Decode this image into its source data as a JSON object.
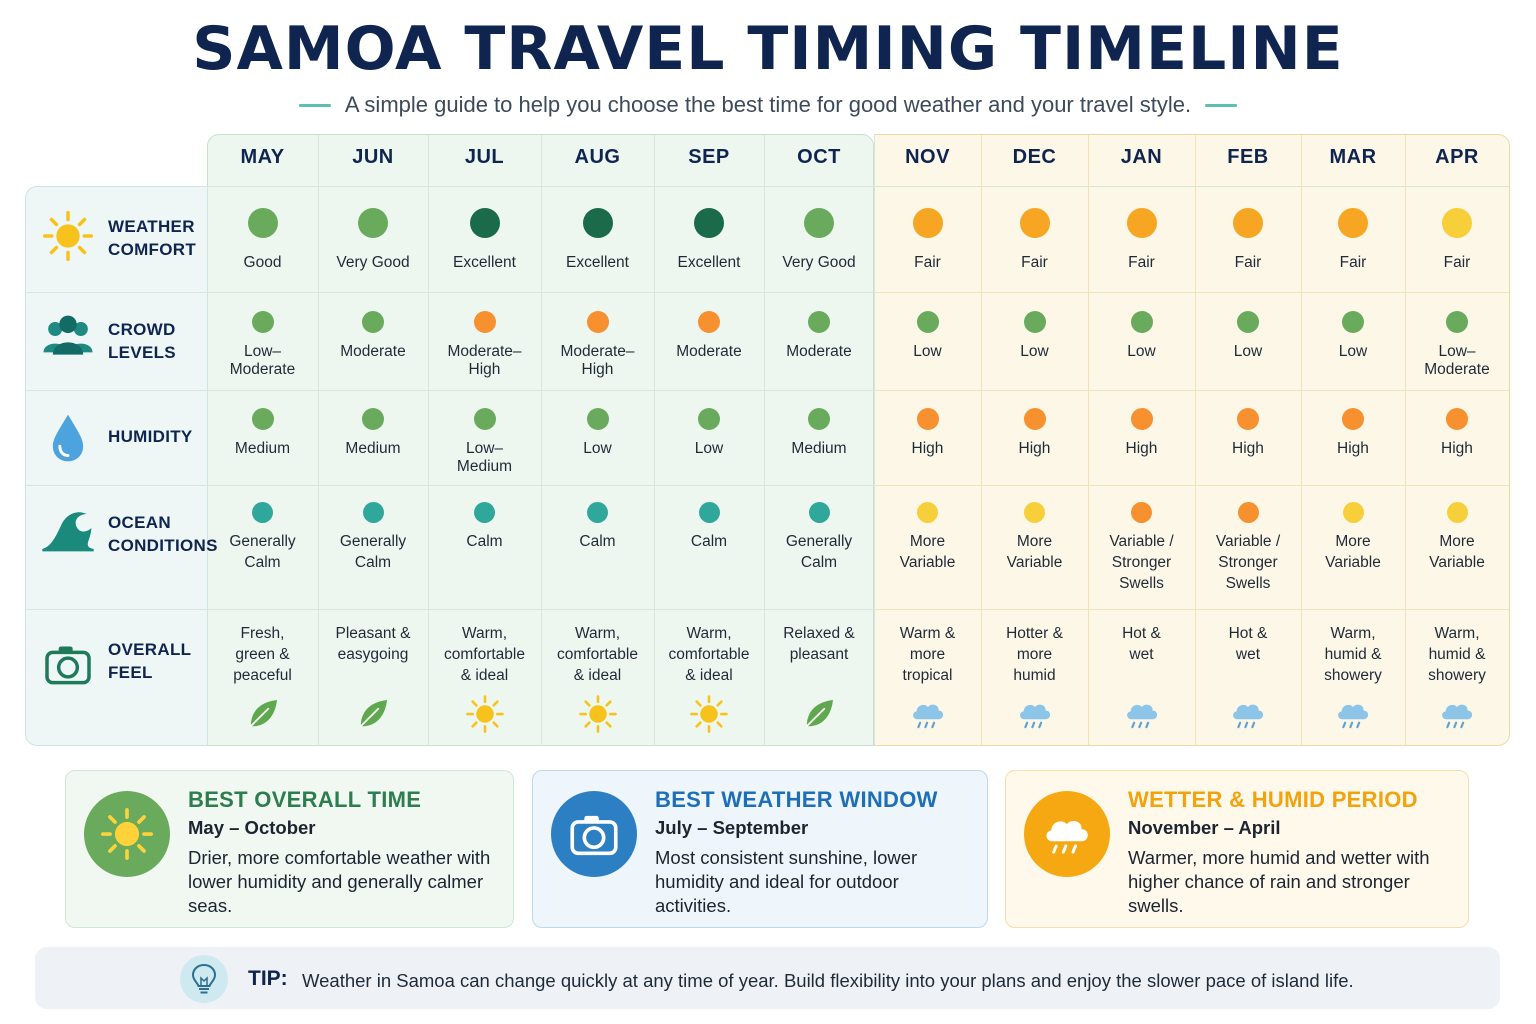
{
  "title": "SAMOA TRAVEL TIMING TIMELINE",
  "subtitle": "A simple guide to help you choose the best time for good weather and your travel style.",
  "colors": {
    "excellent": "#1b6b4a",
    "good": "#6aaa5c",
    "low_green": "#6aaa5c",
    "fair": "#f6a623",
    "orange": "#f7902e",
    "teal": "#2fa79a",
    "yellow": "#f7cf3a",
    "accent_green": "#2e7d4f",
    "accent_blue": "#1d6fb8",
    "accent_amber": "#f2a20c"
  },
  "months": [
    "MAY",
    "JUN",
    "JUL",
    "AUG",
    "SEP",
    "OCT",
    "NOV",
    "DEC",
    "JAN",
    "FEB",
    "MAR",
    "APR"
  ],
  "rows": [
    {
      "label_1": "WEATHER",
      "label_2": "COMFORT",
      "icon": "sun-icon"
    },
    {
      "label_1": "CROWD",
      "label_2": "LEVELS",
      "icon": "people-icon"
    },
    {
      "label_1": "HUMIDITY",
      "label_2": "",
      "icon": "water-drop-icon"
    },
    {
      "label_1": "OCEAN",
      "label_2": "CONDITIONS",
      "icon": "wave-icon"
    },
    {
      "label_1": "OVERALL",
      "label_2": "FEEL",
      "icon": "camera-icon"
    }
  ],
  "weather": [
    {
      "text": "Good",
      "color": "good"
    },
    {
      "text": "Very Good",
      "color": "good"
    },
    {
      "text": "Excellent",
      "color": "excellent"
    },
    {
      "text": "Excellent",
      "color": "excellent"
    },
    {
      "text": "Excellent",
      "color": "excellent"
    },
    {
      "text": "Very Good",
      "color": "good"
    },
    {
      "text": "Fair",
      "color": "fair"
    },
    {
      "text": "Fair",
      "color": "fair"
    },
    {
      "text": "Fair",
      "color": "fair"
    },
    {
      "text": "Fair",
      "color": "fair"
    },
    {
      "text": "Fair",
      "color": "fair"
    },
    {
      "text": "Fair",
      "color": "yellow"
    }
  ],
  "crowd": [
    {
      "text": "Low–\nModerate",
      "color": "good"
    },
    {
      "text": "Moderate",
      "color": "good"
    },
    {
      "text": "Moderate–\nHigh",
      "color": "orange"
    },
    {
      "text": "Moderate–\nHigh",
      "color": "orange"
    },
    {
      "text": "Moderate",
      "color": "orange"
    },
    {
      "text": "Moderate",
      "color": "good"
    },
    {
      "text": "Low",
      "color": "good"
    },
    {
      "text": "Low",
      "color": "good"
    },
    {
      "text": "Low",
      "color": "good"
    },
    {
      "text": "Low",
      "color": "good"
    },
    {
      "text": "Low",
      "color": "good"
    },
    {
      "text": "Low–\nModerate",
      "color": "good"
    }
  ],
  "humidity": [
    {
      "text": "Medium",
      "color": "good"
    },
    {
      "text": "Medium",
      "color": "good"
    },
    {
      "text": "Low–\nMedium",
      "color": "good"
    },
    {
      "text": "Low",
      "color": "good"
    },
    {
      "text": "Low",
      "color": "good"
    },
    {
      "text": "Medium",
      "color": "good"
    },
    {
      "text": "High",
      "color": "orange"
    },
    {
      "text": "High",
      "color": "orange"
    },
    {
      "text": "High",
      "color": "orange"
    },
    {
      "text": "High",
      "color": "orange"
    },
    {
      "text": "High",
      "color": "orange"
    },
    {
      "text": "High",
      "color": "orange"
    }
  ],
  "ocean": [
    {
      "text": "Generally\nCalm",
      "color": "teal"
    },
    {
      "text": "Generally\nCalm",
      "color": "teal"
    },
    {
      "text": "Calm",
      "color": "teal"
    },
    {
      "text": "Calm",
      "color": "teal"
    },
    {
      "text": "Calm",
      "color": "teal"
    },
    {
      "text": "Generally\nCalm",
      "color": "teal"
    },
    {
      "text": "More\nVariable",
      "color": "yellow"
    },
    {
      "text": "More\nVariable",
      "color": "yellow"
    },
    {
      "text": "Variable /\nStronger\nSwells",
      "color": "orange"
    },
    {
      "text": "Variable /\nStronger\nSwells",
      "color": "orange"
    },
    {
      "text": "More\nVariable",
      "color": "yellow"
    },
    {
      "text": "More\nVariable",
      "color": "yellow"
    }
  ],
  "feel": [
    {
      "text": "Fresh,\ngreen &\npeaceful",
      "icon": "leaf-icon"
    },
    {
      "text": "Pleasant &\neasygoing",
      "icon": "leaf-icon"
    },
    {
      "text": "Warm,\ncomfortable\n& ideal",
      "icon": "sun-icon"
    },
    {
      "text": "Warm,\ncomfortable\n& ideal",
      "icon": "sun-icon"
    },
    {
      "text": "Warm,\ncomfortable\n& ideal",
      "icon": "sun-icon"
    },
    {
      "text": "Relaxed &\npleasant",
      "icon": "leaf-icon"
    },
    {
      "text": "Warm &\nmore\ntropical",
      "icon": "rain-cloud-icon"
    },
    {
      "text": "Hotter &\nmore\nhumid",
      "icon": "rain-cloud-icon"
    },
    {
      "text": "Hot &\nwet",
      "icon": "rain-cloud-icon"
    },
    {
      "text": "Hot &\nwet",
      "icon": "rain-cloud-icon"
    },
    {
      "text": "Warm,\nhumid &\nshowery",
      "icon": "rain-cloud-icon"
    },
    {
      "text": "Warm,\nhumid &\nshowery",
      "icon": "rain-cloud-icon"
    }
  ],
  "cards": [
    {
      "title": "BEST OVERALL TIME",
      "period": "May – October",
      "desc": "Drier, more comfortable weather with lower humidity and generally calmer seas.",
      "icon": "sun-icon"
    },
    {
      "title": "BEST WEATHER WINDOW",
      "period": "July – September",
      "desc": "Most consistent sunshine, lower humidity and ideal for outdoor activities.",
      "icon": "camera-icon"
    },
    {
      "title": "WETTER & HUMID PERIOD",
      "period": "November – April",
      "desc": "Warmer, more humid and wetter with higher chance of rain and stronger swells.",
      "icon": "rain-cloud-icon"
    }
  ],
  "tip": {
    "label": "TIP:",
    "text": "Weather in Samoa can change quickly at any time of year. Build flexibility into your plans and enjoy the slower pace of island life.",
    "icon": "lightbulb-icon"
  }
}
